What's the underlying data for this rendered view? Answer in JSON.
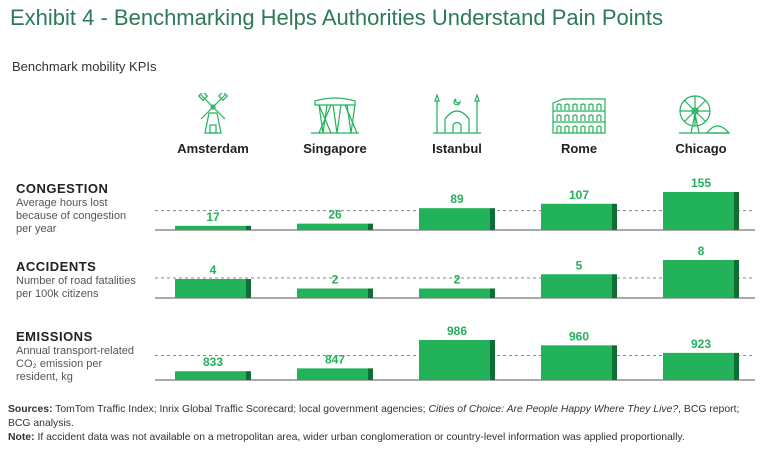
{
  "title": "Exhibit 4 - Benchmarking Helps Authorities Understand Pain Points",
  "subtitle": "Benchmark mobility KPIs",
  "colors": {
    "bar": "#21b25a",
    "bar_shadow": "#0e6e36",
    "accent": "#2d7a56",
    "label": "#21b25a"
  },
  "cities": [
    {
      "name": "Amsterdam",
      "icon": "windmill-icon"
    },
    {
      "name": "Singapore",
      "icon": "marina-bay-icon"
    },
    {
      "name": "Istanbul",
      "icon": "mosque-icon"
    },
    {
      "name": "Rome",
      "icon": "colosseum-icon"
    },
    {
      "name": "Chicago",
      "icon": "ferris-wheel-icon"
    }
  ],
  "kpis": [
    {
      "title": "CONGESTION",
      "desc_lines": [
        "Average hours lost",
        "because of congestion",
        "per year"
      ]
    },
    {
      "title": "ACCIDENTS",
      "desc_lines": [
        "Number of road fatalities",
        "per 100k citizens"
      ]
    },
    {
      "title": "EMISSIONS",
      "desc_lines": [
        "Annual transport-related",
        "CO₂ emission per",
        "resident, kg"
      ]
    }
  ],
  "sources": {
    "label": "Sources:",
    "text": "TomTom Traffic Index; Inrix Global Traffic Scorecard; local government agencies; ",
    "italic": "Cities of Choice: Are People Happy Where They Live?",
    "after": ", BCG report; BCG analysis."
  },
  "note": {
    "label": "Note:",
    "text": "If accident data was not available on a metropolitan area, wider urban conglomeration or country-level information was applied proportionally."
  },
  "chart_data": {
    "type": "bar",
    "categories": [
      "Amsterdam",
      "Singapore",
      "Istanbul",
      "Rome",
      "Chicago"
    ],
    "series": [
      {
        "name": "CONGESTION",
        "values": [
          17,
          26,
          89,
          107,
          155
        ],
        "unit": "hours per year"
      },
      {
        "name": "ACCIDENTS",
        "values": [
          4,
          2,
          2,
          5,
          8
        ],
        "unit": "fatalities per 100k citizens"
      },
      {
        "name": "EMISSIONS",
        "values": [
          833,
          847,
          986,
          960,
          923
        ],
        "unit": "kg CO₂ per resident"
      }
    ]
  }
}
